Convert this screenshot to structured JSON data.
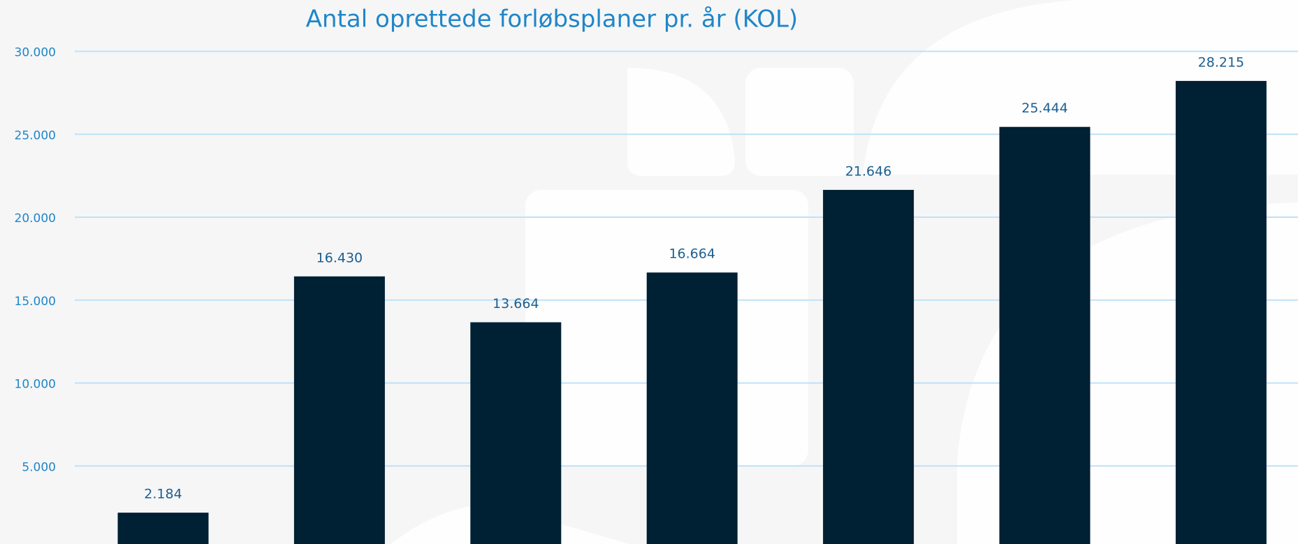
{
  "chart_data": {
    "type": "bar",
    "title": "Antal oprettede forløbsplaner pr. år (KOL)",
    "categories": [
      null,
      null,
      null,
      null,
      null,
      null,
      null
    ],
    "values": [
      2184,
      16430,
      13664,
      16664,
      21646,
      25444,
      28215
    ],
    "value_labels": [
      "2.184",
      "16.430",
      "13.664",
      "16.664",
      "21.646",
      "25.444",
      "28.215"
    ],
    "color": "#002033",
    "ylim": [
      0,
      30000
    ],
    "yticks": [
      {
        "value": 5000,
        "label": "5.000"
      },
      {
        "value": 10000,
        "label": "10.000"
      },
      {
        "value": 15000,
        "label": "15.000"
      },
      {
        "value": 20000,
        "label": "20.000"
      },
      {
        "value": 25000,
        "label": "25.000"
      },
      {
        "value": 30000,
        "label": "30.000"
      }
    ],
    "grid": true
  }
}
